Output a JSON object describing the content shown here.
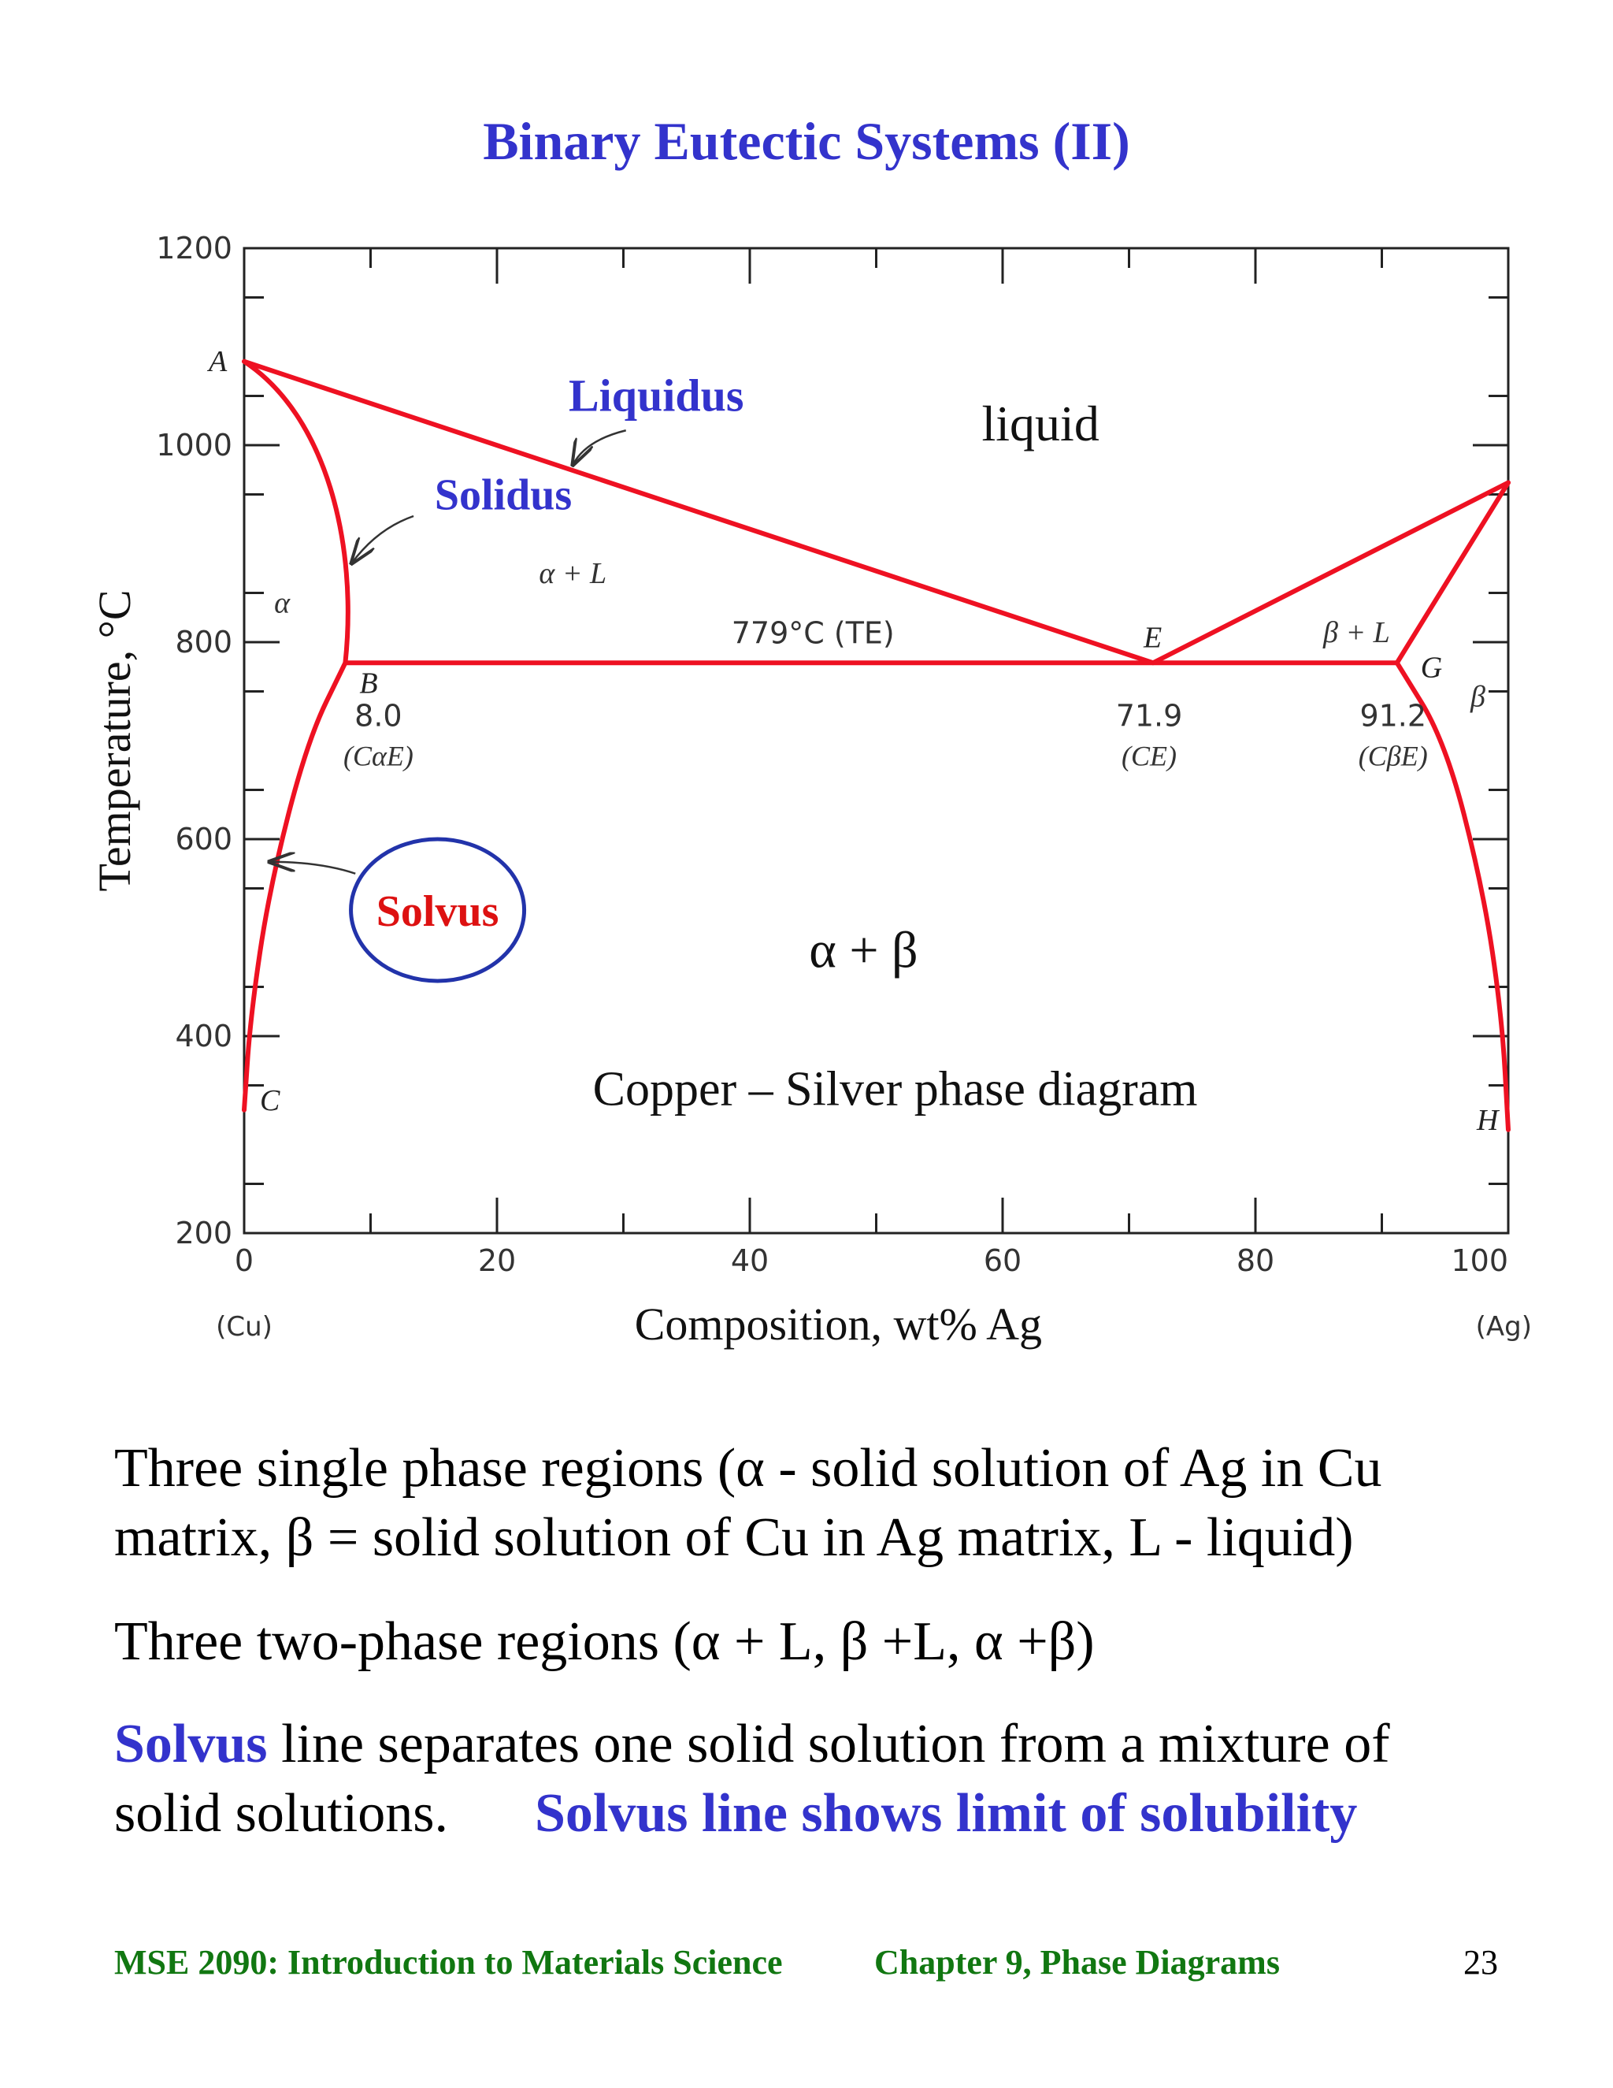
{
  "slide": {
    "title": "Binary Eutectic Systems (II)",
    "page_number": "23",
    "footer_left": "MSE 2090: Introduction to Materials Science",
    "footer_right": "Chapter 9, Phase Diagrams"
  },
  "chart_data": {
    "type": "line",
    "title": "Copper – Silver phase diagram",
    "xlabel": "Composition, wt% Ag",
    "ylabel": "Temperature, °C",
    "xlim": [
      0,
      100
    ],
    "ylim": [
      200,
      1200
    ],
    "x_ticks": [
      "0",
      "20",
      "40",
      "60",
      "80",
      "100"
    ],
    "x_tick_values": [
      0,
      20,
      40,
      60,
      80,
      100
    ],
    "y_ticks": [
      "200",
      "400",
      "600",
      "800",
      "1000",
      "1200"
    ],
    "y_tick_values": [
      200,
      400,
      600,
      800,
      1000,
      1200
    ],
    "x_end_labels": {
      "left": "(Cu)",
      "right": "(Ag)"
    },
    "line_color": "#ee1122",
    "series": [
      {
        "name": "Liquidus",
        "points": [
          [
            0,
            1085
          ],
          [
            71.9,
            779
          ],
          [
            100,
            962
          ]
        ]
      },
      {
        "name": "Solidus",
        "points": [
          [
            0,
            1085
          ],
          [
            5,
            960
          ],
          [
            8.0,
            779
          ]
        ]
      },
      {
        "name": "Eutectic isotherm",
        "points": [
          [
            8.0,
            779
          ],
          [
            91.2,
            779
          ]
        ]
      },
      {
        "name": "Solidus beta",
        "points": [
          [
            91.2,
            779
          ],
          [
            100,
            962
          ]
        ]
      },
      {
        "name": "Solvus alpha",
        "points": [
          [
            8.0,
            779
          ],
          [
            5,
            700
          ],
          [
            2,
            550
          ],
          [
            0.5,
            420
          ],
          [
            0,
            325
          ]
        ]
      },
      {
        "name": "Solvus beta",
        "points": [
          [
            91.2,
            779
          ],
          [
            95,
            700
          ],
          [
            98,
            550
          ],
          [
            99.5,
            420
          ],
          [
            100,
            305
          ]
        ]
      }
    ],
    "points": [
      {
        "label": "A",
        "x": 0,
        "y": 1085
      },
      {
        "label": "B",
        "x": 8.0,
        "y": 779
      },
      {
        "label": "C",
        "x": 0,
        "y": 325
      },
      {
        "label": "E",
        "x": 71.9,
        "y": 779
      },
      {
        "label": "G",
        "x": 91.2,
        "y": 779
      },
      {
        "label": "H",
        "x": 100,
        "y": 305
      }
    ],
    "value_labels": [
      {
        "value": "8.0",
        "sub": "(CαE)",
        "x": 8.0
      },
      {
        "value": "71.9",
        "sub": "(CE)",
        "x": 71.9
      },
      {
        "value": "91.2",
        "sub": "(CβE)",
        "x": 91.2
      }
    ],
    "eutectic_temperature_label": "779°C (TE)",
    "annotations": {
      "liquidus": "Liquidus",
      "solidus": "Solidus",
      "solvus": "Solvus",
      "liquid": "liquid",
      "alpha_plus_L": "α + L",
      "beta_plus_L": "β + L",
      "alpha": "α",
      "beta": "β",
      "alpha_plus_beta": "α + β"
    }
  },
  "body": {
    "para1_line1": "Three single phase regions (α - solid solution of Ag in Cu",
    "para1_line2": "matrix,  β = solid solution of Cu in Ag matrix, L - liquid)",
    "para2": "Three two-phase regions (α + L, β +L, α +β)",
    "para3_line1_bold": "Solvus",
    "para3_line1_rest": " line separates one solid solution from a mixture of",
    "para3_line2_text": "solid solutions.",
    "para3_line2_bold": "Solvus line shows limit of solubility"
  }
}
